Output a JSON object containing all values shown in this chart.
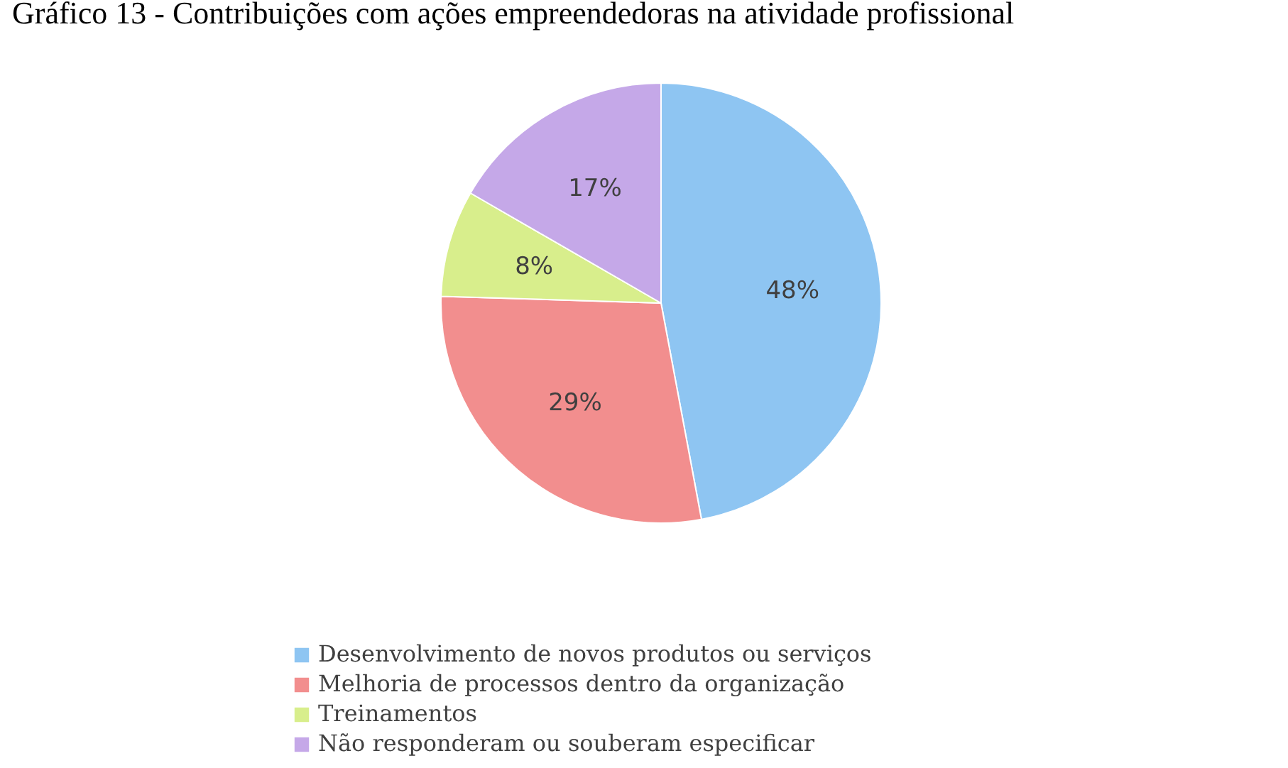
{
  "chart_data": {
    "type": "pie",
    "title": "Gráfico 13 - Contribuições com ações empreendedoras na atividade profissional",
    "categories": [
      "Desenvolvimento de novos produtos ou serviços",
      "Melhoria de processos dentro da organização",
      "Treinamentos",
      "Não responderam ou souberam especificar"
    ],
    "values": [
      48,
      29,
      8,
      17
    ],
    "colors": [
      "#8ec5f2",
      "#f28e8e",
      "#d8ee8c",
      "#c5a8e8"
    ],
    "value_labels": [
      "48%",
      "29%",
      "8%",
      "17%"
    ],
    "legend": "bottom"
  }
}
